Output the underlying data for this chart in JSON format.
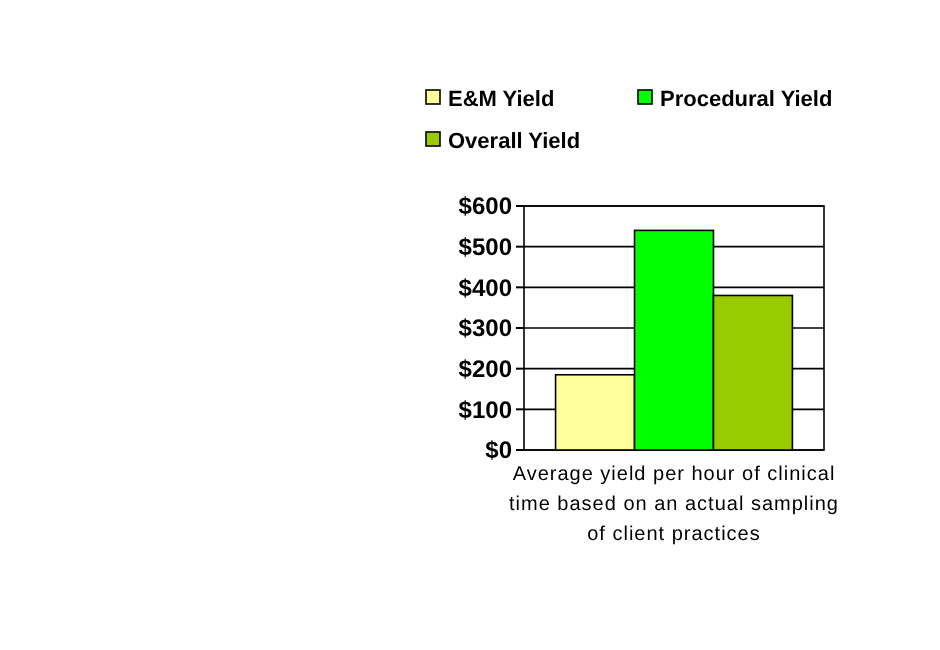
{
  "chart_data": {
    "type": "bar",
    "xlabel": "Average yield per hour of clinical time based on an actual sampling of client practices",
    "categories": [
      null
    ],
    "series": [
      {
        "name": "E&M Yield",
        "color": "#ffff99",
        "values": [
          185
        ]
      },
      {
        "name": "Procedural Yield",
        "color": "#00ff00",
        "values": [
          540
        ]
      },
      {
        "name": "Overall Yield",
        "color": "#99cc00",
        "values": [
          380
        ]
      }
    ],
    "ylim": [
      0,
      600
    ],
    "yticks": [
      {
        "value": 0,
        "label": "$0"
      },
      {
        "value": 100,
        "label": "$100"
      },
      {
        "value": 200,
        "label": "$200"
      },
      {
        "value": 300,
        "label": "$300"
      },
      {
        "value": 400,
        "label": "$400"
      },
      {
        "value": 500,
        "label": "$500"
      },
      {
        "value": 600,
        "label": "$600"
      }
    ],
    "grid": "y",
    "legend": "top"
  }
}
